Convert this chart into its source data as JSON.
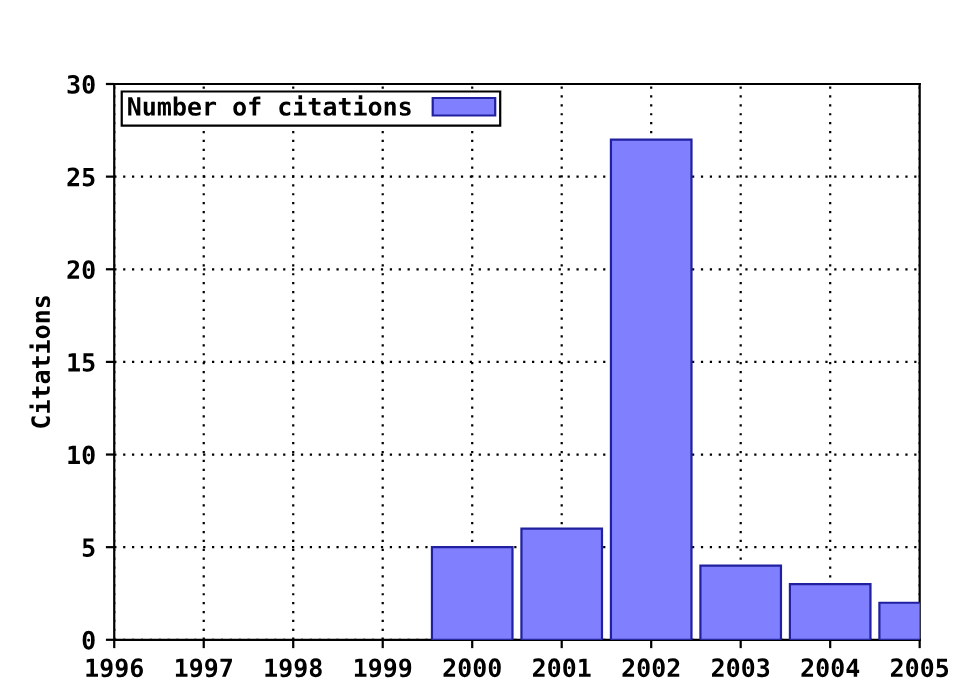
{
  "chart_data": {
    "type": "bar",
    "ylabel": "Citations",
    "x": [
      2000,
      2001,
      2002,
      2003,
      2004,
      2005
    ],
    "series": [
      {
        "name": "Number of citations",
        "color": "#8080ff",
        "values": [
          5,
          6,
          27,
          4,
          3,
          2
        ]
      }
    ],
    "xlim": [
      1996,
      2005
    ],
    "xticks": [
      1996,
      1997,
      1998,
      1999,
      2000,
      2001,
      2002,
      2003,
      2004,
      2005
    ],
    "ylim": [
      0,
      30
    ],
    "yticks": [
      0,
      5,
      10,
      15,
      20,
      25,
      30
    ],
    "grid": true,
    "legend": "top left"
  }
}
